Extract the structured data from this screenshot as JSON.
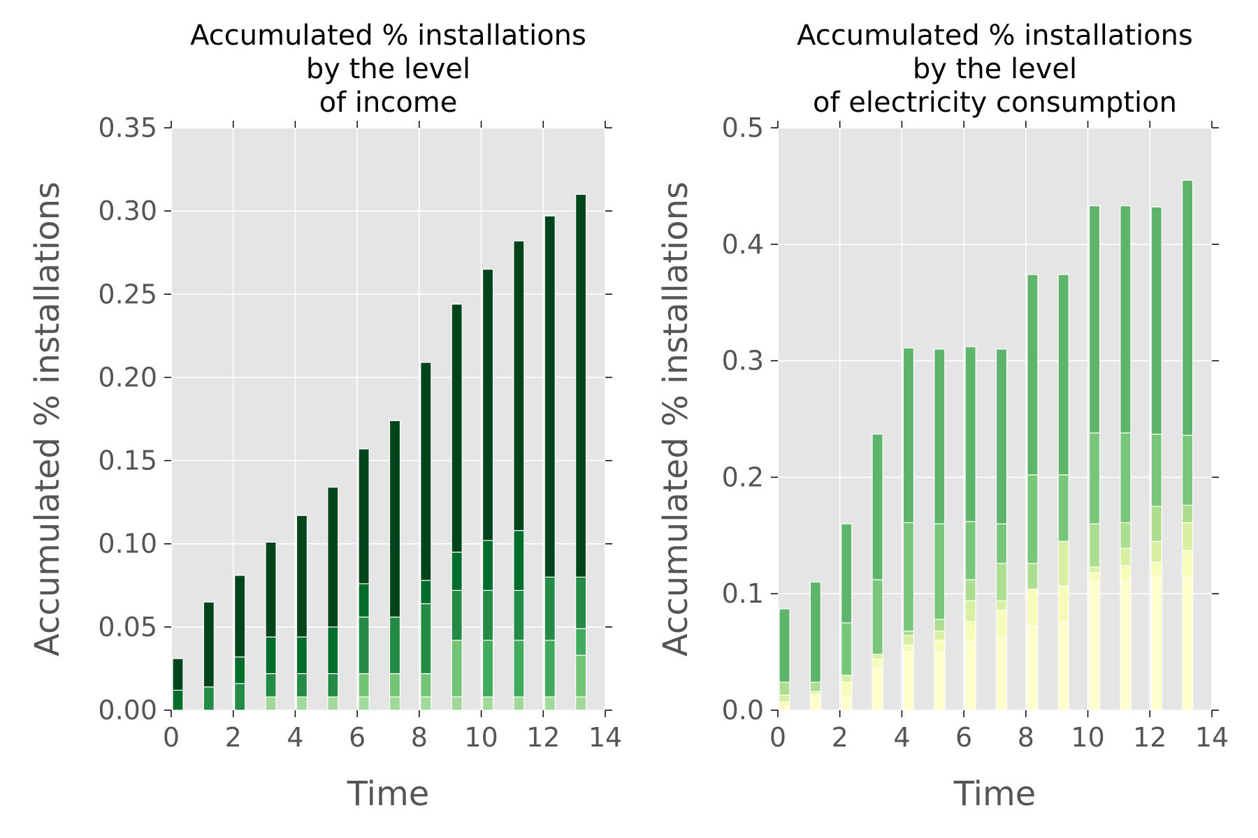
{
  "chart_data": [
    {
      "type": "bar",
      "stacked": true,
      "title": [
        "Accumulated % installations",
        "by the level",
        "of income"
      ],
      "xlabel": "Time",
      "ylabel": "Accumulated % installations",
      "xlim": [
        0,
        14
      ],
      "ylim": [
        0,
        0.35
      ],
      "xticks": [
        0,
        2,
        4,
        6,
        8,
        10,
        12,
        14
      ],
      "yticks": [
        0.0,
        0.05,
        0.1,
        0.15,
        0.2,
        0.25,
        0.3,
        0.35
      ],
      "ytick_labels": [
        "0.00",
        "0.05",
        "0.10",
        "0.15",
        "0.20",
        "0.25",
        "0.30",
        "0.35"
      ],
      "grid": true,
      "background": "#e5e5e5",
      "x": [
        0,
        1,
        2,
        3,
        4,
        5,
        6,
        7,
        8,
        9,
        10,
        11,
        12,
        13
      ],
      "series": [
        {
          "color": "#a1d99b",
          "values": [
            0.0,
            0.0,
            0.0,
            0.008,
            0.008,
            0.008,
            0.008,
            0.008,
            0.008,
            0.008,
            0.008,
            0.008,
            0.008,
            0.008
          ]
        },
        {
          "color": "#74c476",
          "values": [
            0.0,
            0.0,
            0.0,
            0.0,
            0.0,
            0.0,
            0.014,
            0.014,
            0.014,
            0.034,
            0.0,
            0.0,
            0.0,
            0.025
          ]
        },
        {
          "color": "#41ab5d",
          "values": [
            0.0,
            0.0,
            0.0,
            0.0,
            0.0,
            0.0,
            0.0,
            0.0,
            0.0,
            0.0,
            0.034,
            0.034,
            0.034,
            0.016
          ]
        },
        {
          "color": "#238b45",
          "values": [
            0.0,
            0.014,
            0.016,
            0.014,
            0.014,
            0.014,
            0.034,
            0.034,
            0.042,
            0.03,
            0.03,
            0.03,
            0.038,
            0.031
          ]
        },
        {
          "color": "#006d2c",
          "values": [
            0.012,
            0.0,
            0.016,
            0.022,
            0.022,
            0.028,
            0.02,
            0.0,
            0.014,
            0.023,
            0.03,
            0.036,
            0.0,
            0.0
          ]
        },
        {
          "color": "#00441b",
          "values": [
            0.019,
            0.051,
            0.049,
            0.057,
            0.073,
            0.084,
            0.081,
            0.118,
            0.131,
            0.149,
            0.163,
            0.174,
            0.217,
            0.23
          ]
        }
      ]
    },
    {
      "type": "bar",
      "stacked": true,
      "title": [
        "Accumulated % installations",
        "by the level",
        "of electricity consumption"
      ],
      "xlabel": "Time",
      "ylabel": "Accumulated % installations",
      "xlim": [
        0,
        14
      ],
      "ylim": [
        0,
        0.5
      ],
      "xticks": [
        0,
        2,
        4,
        6,
        8,
        10,
        12,
        14
      ],
      "yticks": [
        0.0,
        0.1,
        0.2,
        0.3,
        0.4,
        0.5
      ],
      "ytick_labels": [
        "0.0",
        "0.1",
        "0.2",
        "0.3",
        "0.4",
        "0.5"
      ],
      "grid": true,
      "background": "#e5e5e5",
      "x": [
        0,
        1,
        2,
        3,
        4,
        5,
        6,
        7,
        8,
        9,
        10,
        11,
        12,
        13
      ],
      "series": [
        {
          "color": "#ffffcc",
          "values": [
            0.003,
            0.01,
            0.012,
            0.036,
            0.05,
            0.05,
            0.06,
            0.062,
            0.072,
            0.075,
            0.11,
            0.11,
            0.115,
            0.115
          ]
        },
        {
          "color": "#f7fcb9",
          "values": [
            0.004,
            0.004,
            0.012,
            0.008,
            0.006,
            0.01,
            0.016,
            0.024,
            0.032,
            0.032,
            0.008,
            0.014,
            0.012,
            0.022
          ]
        },
        {
          "color": "#d9f0a3",
          "values": [
            0.006,
            0.002,
            0.006,
            0.004,
            0.008,
            0.008,
            0.018,
            0.008,
            0.0,
            0.038,
            0.005,
            0.015,
            0.018,
            0.024
          ]
        },
        {
          "color": "#addd8e",
          "values": [
            0.011,
            0.008,
            0.0,
            0.0,
            0.004,
            0.01,
            0.018,
            0.032,
            0.022,
            0.0,
            0.037,
            0.022,
            0.03,
            0.015
          ]
        },
        {
          "color": "#78c679",
          "values": [
            0.0,
            0.0,
            0.045,
            0.064,
            0.093,
            0.082,
            0.05,
            0.034,
            0.076,
            0.057,
            0.078,
            0.077,
            0.062,
            0.06
          ]
        },
        {
          "color": "#5cb56a",
          "values": [
            0.063,
            0.086,
            0.085,
            0.125,
            0.15,
            0.15,
            0.15,
            0.15,
            0.172,
            0.172,
            0.195,
            0.195,
            0.195,
            0.219
          ]
        }
      ]
    }
  ]
}
